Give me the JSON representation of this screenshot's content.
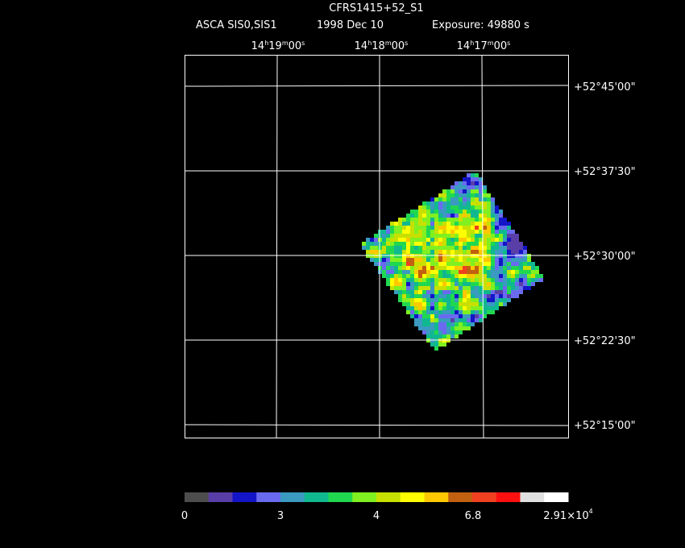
{
  "header": {
    "title": "CFRS1415+52_S1",
    "instrument": "ASCA SIS0,SIS1",
    "date": "1998 Dec 10",
    "exposure": "Exposure: 49880 s"
  },
  "ra_labels": [
    [
      "14",
      "h",
      "19",
      "m",
      "00",
      "s"
    ],
    [
      "14",
      "h",
      "18",
      "m",
      "00",
      "s"
    ],
    [
      "14",
      "h",
      "17",
      "m",
      "00",
      "s"
    ]
  ],
  "dec_labels": [
    "+52°45'00\"",
    "+52°37'30\"",
    "+52°30'00\"",
    "+52°22'30\"",
    "+52°15'00\""
  ],
  "colorbar": {
    "colors": [
      "#4d4d4d",
      "#5a3ea8",
      "#1414c8",
      "#6a6af0",
      "#3a9ac0",
      "#10b890",
      "#20d850",
      "#80f020",
      "#c8e000",
      "#ffff00",
      "#ffc800",
      "#c06010",
      "#f04020",
      "#ff1010",
      "#e0e0e0",
      "#ffffff"
    ],
    "labels": [
      [
        "0"
      ],
      [
        "3"
      ],
      [
        "4"
      ],
      [
        "6.8"
      ],
      [
        "2.91×10",
        "4"
      ]
    ]
  }
}
